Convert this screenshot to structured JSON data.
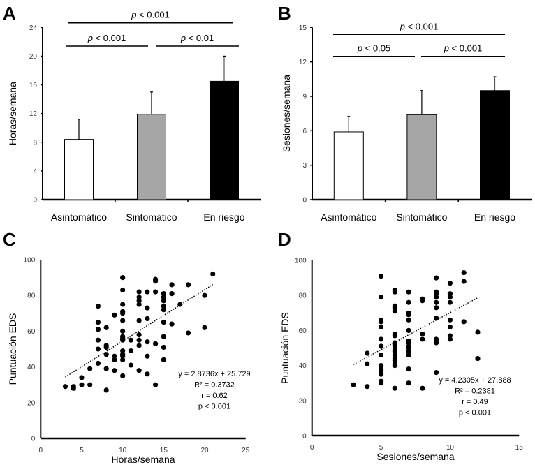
{
  "chart_data": [
    {
      "panel": "A",
      "type": "bar",
      "categories": [
        "Asintomático",
        "Sintomático",
        "En riesgo"
      ],
      "values": [
        8.4,
        11.9,
        16.5
      ],
      "error_upper": [
        11.2,
        15.0,
        20.0
      ],
      "bar_colors": [
        "#ffffff",
        "#a6a6a6",
        "#000000"
      ],
      "ylabel": "Horas/semana",
      "ylim": [
        0,
        24
      ],
      "yticks": [
        0,
        4,
        8,
        12,
        16,
        20,
        24
      ],
      "significance": [
        {
          "from": 0,
          "to": 2,
          "label": "p < 0.001",
          "level": "top"
        },
        {
          "from": 0,
          "to": 1,
          "label": "p < 0.001",
          "level": "lower"
        },
        {
          "from": 1,
          "to": 2,
          "label": "p < 0.01",
          "level": "lower"
        }
      ]
    },
    {
      "panel": "B",
      "type": "bar",
      "categories": [
        "Asintomático",
        "Sintomático",
        "En riesgo"
      ],
      "values": [
        5.9,
        7.4,
        9.5
      ],
      "error_upper": [
        7.25,
        9.5,
        10.7
      ],
      "bar_colors": [
        "#ffffff",
        "#a6a6a6",
        "#000000"
      ],
      "ylabel": "Sesiones/semana",
      "ylim": [
        0,
        15
      ],
      "yticks": [
        0,
        3,
        6,
        9,
        12,
        15
      ],
      "significance": [
        {
          "from": 0,
          "to": 2,
          "label": "p < 0.001",
          "level": "top"
        },
        {
          "from": 0,
          "to": 1,
          "label": "p < 0.05",
          "level": "lower"
        },
        {
          "from": 1,
          "to": 2,
          "label": "p < 0.001",
          "level": "lower"
        }
      ]
    },
    {
      "panel": "C",
      "type": "scatter",
      "xlabel": "Horas/semana",
      "ylabel": "Puntuación EDS",
      "xlim": [
        0,
        25
      ],
      "ylim": [
        0,
        100
      ],
      "xticks": [
        0,
        5,
        10,
        15,
        20,
        25
      ],
      "yticks": [
        0,
        20,
        40,
        60,
        80,
        100
      ],
      "trendline": {
        "slope": 2.8736,
        "intercept": 25.729,
        "x_range": [
          3,
          21
        ],
        "style": "dotted"
      },
      "annotation": [
        "y = 2.8736x + 25.729",
        "R² = 0.3732",
        "r = 0.62",
        "p < 0.001"
      ],
      "points": [
        [
          3,
          29
        ],
        [
          4,
          29
        ],
        [
          4,
          28
        ],
        [
          5,
          34
        ],
        [
          5,
          30
        ],
        [
          6,
          39
        ],
        [
          6,
          30
        ],
        [
          7,
          74
        ],
        [
          7,
          65
        ],
        [
          7,
          61
        ],
        [
          7,
          55
        ],
        [
          7,
          50
        ],
        [
          7,
          42
        ],
        [
          8,
          62
        ],
        [
          8,
          52
        ],
        [
          8,
          51
        ],
        [
          8,
          47
        ],
        [
          8,
          39
        ],
        [
          8,
          27
        ],
        [
          9,
          69
        ],
        [
          9,
          46
        ],
        [
          9,
          44
        ],
        [
          9,
          38
        ],
        [
          10,
          90
        ],
        [
          10,
          83
        ],
        [
          10,
          75
        ],
        [
          10,
          71
        ],
        [
          10,
          70
        ],
        [
          10,
          66
        ],
        [
          10,
          60
        ],
        [
          10,
          57
        ],
        [
          10,
          56
        ],
        [
          10,
          55
        ],
        [
          10,
          49
        ],
        [
          10,
          47
        ],
        [
          10,
          46
        ],
        [
          10,
          44
        ],
        [
          10,
          35
        ],
        [
          11,
          55
        ],
        [
          11,
          49
        ],
        [
          11,
          41
        ],
        [
          12,
          82
        ],
        [
          12,
          79
        ],
        [
          12,
          77
        ],
        [
          12,
          75
        ],
        [
          12,
          66
        ],
        [
          12,
          58
        ],
        [
          12,
          55
        ],
        [
          12,
          52
        ],
        [
          12,
          38
        ],
        [
          13,
          82
        ],
        [
          13,
          73
        ],
        [
          13,
          67
        ],
        [
          13,
          54
        ],
        [
          13,
          46
        ],
        [
          13,
          36
        ],
        [
          14,
          89
        ],
        [
          14,
          88
        ],
        [
          14,
          82
        ],
        [
          14,
          53
        ],
        [
          14,
          30
        ],
        [
          15,
          81
        ],
        [
          15,
          79
        ],
        [
          15,
          77
        ],
        [
          15,
          74
        ],
        [
          15,
          72
        ],
        [
          15,
          65
        ],
        [
          15,
          57
        ],
        [
          15,
          51
        ],
        [
          15,
          44
        ],
        [
          16,
          86
        ],
        [
          16,
          81
        ],
        [
          16,
          64
        ],
        [
          17,
          75
        ],
        [
          18,
          86
        ],
        [
          18,
          59
        ],
        [
          20,
          80
        ],
        [
          20,
          62
        ],
        [
          21,
          92
        ]
      ]
    },
    {
      "panel": "D",
      "type": "scatter",
      "xlabel": "Sesiones/semana",
      "ylabel": "Puntuación EDS",
      "xlim": [
        0,
        15
      ],
      "ylim": [
        0,
        100
      ],
      "xticks": [
        0,
        5,
        10,
        15
      ],
      "yticks": [
        0,
        20,
        40,
        60,
        80,
        100
      ],
      "trendline": {
        "slope": 4.2305,
        "intercept": 27.888,
        "x_range": [
          3,
          12
        ],
        "style": "dotted"
      },
      "annotation": [
        "y = 4.2305x + 27.888",
        "R² = 0.2381",
        "r = 0.49",
        "p < 0.001"
      ],
      "points": [
        [
          3,
          29
        ],
        [
          4,
          47
        ],
        [
          4,
          41
        ],
        [
          4,
          28
        ],
        [
          5,
          91
        ],
        [
          5,
          79
        ],
        [
          5,
          66
        ],
        [
          5,
          65
        ],
        [
          5,
          62
        ],
        [
          5,
          62
        ],
        [
          5,
          55
        ],
        [
          5,
          51
        ],
        [
          5,
          46
        ],
        [
          5,
          40
        ],
        [
          5,
          38
        ],
        [
          5,
          37
        ],
        [
          5,
          35
        ],
        [
          5,
          31
        ],
        [
          5,
          30
        ],
        [
          6,
          83
        ],
        [
          6,
          82
        ],
        [
          6,
          74
        ],
        [
          6,
          73
        ],
        [
          6,
          71
        ],
        [
          6,
          58
        ],
        [
          6,
          57
        ],
        [
          6,
          53
        ],
        [
          6,
          52
        ],
        [
          6,
          51
        ],
        [
          6,
          49
        ],
        [
          6,
          48
        ],
        [
          6,
          46
        ],
        [
          6,
          44
        ],
        [
          6,
          43
        ],
        [
          6,
          41
        ],
        [
          6,
          40
        ],
        [
          6,
          27
        ],
        [
          7,
          82
        ],
        [
          7,
          76
        ],
        [
          7,
          70
        ],
        [
          7,
          69
        ],
        [
          7,
          66
        ],
        [
          7,
          60
        ],
        [
          7,
          54
        ],
        [
          7,
          53
        ],
        [
          7,
          51
        ],
        [
          7,
          50
        ],
        [
          7,
          48
        ],
        [
          7,
          46
        ],
        [
          7,
          38
        ],
        [
          7,
          30
        ],
        [
          8,
          78
        ],
        [
          8,
          77
        ],
        [
          8,
          58
        ],
        [
          8,
          55
        ],
        [
          8,
          27
        ],
        [
          9,
          90
        ],
        [
          9,
          82
        ],
        [
          9,
          81
        ],
        [
          9,
          79
        ],
        [
          9,
          76
        ],
        [
          9,
          73
        ],
        [
          9,
          67
        ],
        [
          9,
          55
        ],
        [
          9,
          53
        ],
        [
          9,
          36
        ],
        [
          10,
          87
        ],
        [
          10,
          81
        ],
        [
          10,
          79
        ],
        [
          10,
          76
        ],
        [
          10,
          66
        ],
        [
          10,
          62
        ],
        [
          10,
          57
        ],
        [
          10,
          55
        ],
        [
          11,
          93
        ],
        [
          11,
          88
        ],
        [
          11,
          65
        ],
        [
          12,
          59
        ],
        [
          12,
          44
        ]
      ]
    }
  ]
}
